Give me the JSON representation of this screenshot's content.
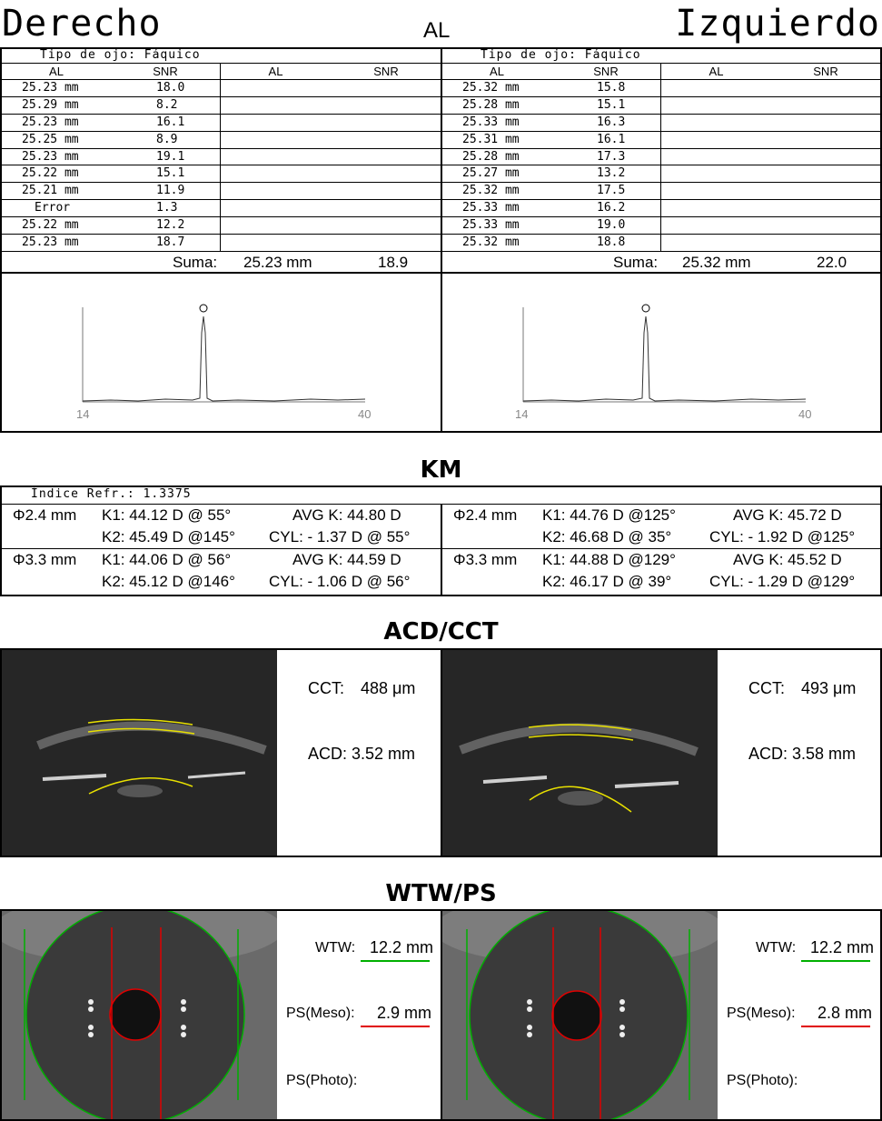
{
  "header": {
    "right_eye": "Derecho",
    "left_eye": "Izquierdo"
  },
  "al": {
    "title": "AL",
    "sum_label": "Suma:",
    "col_headers": [
      "AL",
      "SNR",
      "AL",
      "SNR"
    ],
    "right": {
      "eye_type": "Tipo de ojo: Fáquico",
      "rows": [
        [
          "25.23 mm",
          "18.0"
        ],
        [
          "25.29 mm",
          "8.2"
        ],
        [
          "25.23 mm",
          "16.1"
        ],
        [
          "25.25 mm",
          "8.9"
        ],
        [
          "25.23 mm",
          "19.1"
        ],
        [
          "25.22 mm",
          "15.1"
        ],
        [
          "25.21 mm",
          "11.9"
        ],
        [
          "Error",
          "1.3"
        ],
        [
          "25.22 mm",
          "12.2"
        ],
        [
          "25.23 mm",
          "18.7"
        ]
      ],
      "sum_al": "25.23 mm",
      "sum_snr": "18.9",
      "axis_min": "14",
      "axis_max": "40"
    },
    "left": {
      "eye_type": "Tipo de ojo: Fáquico",
      "rows": [
        [
          "25.32 mm",
          "15.8"
        ],
        [
          "25.28 mm",
          "15.1"
        ],
        [
          "25.33 mm",
          "16.3"
        ],
        [
          "25.31 mm",
          "16.1"
        ],
        [
          "25.28 mm",
          "17.3"
        ],
        [
          "25.27 mm",
          "13.2"
        ],
        [
          "25.32 mm",
          "17.5"
        ],
        [
          "25.33 mm",
          "16.2"
        ],
        [
          "25.33 mm",
          "19.0"
        ],
        [
          "25.32 mm",
          "18.8"
        ]
      ],
      "sum_al": "25.32 mm",
      "sum_snr": "22.0",
      "axis_min": "14",
      "axis_max": "40"
    }
  },
  "km": {
    "title": "KM",
    "refr_index": "Índice Refr.: 1.3375",
    "right": [
      {
        "zone": "Φ2.4 mm",
        "k1": "K1: 44.12 D @ 55°",
        "k2": "K2: 45.49 D @145°",
        "avg": "AVG K: 44.80 D",
        "cyl": "CYL: - 1.37 D @ 55°"
      },
      {
        "zone": "Φ3.3 mm",
        "k1": "K1: 44.06 D @ 56°",
        "k2": "K2: 45.12 D @146°",
        "avg": "AVG K: 44.59 D",
        "cyl": "CYL: - 1.06 D @ 56°"
      }
    ],
    "left": [
      {
        "zone": "Φ2.4 mm",
        "k1": "K1: 44.76 D @125°",
        "k2": "K2: 46.68 D @ 35°",
        "avg": "AVG K: 45.72 D",
        "cyl": "CYL: - 1.92 D @125°"
      },
      {
        "zone": "Φ3.3 mm",
        "k1": "K1: 44.88 D @129°",
        "k2": "K2: 46.17 D @ 39°",
        "avg": "AVG K: 45.52 D",
        "cyl": "CYL: - 1.29 D @129°"
      }
    ]
  },
  "acd": {
    "title": "ACD/CCT",
    "right": {
      "cct_label": "CCT:",
      "cct": "488 μm",
      "acd_label": "ACD:",
      "acd": "3.52 mm"
    },
    "left": {
      "cct_label": "CCT:",
      "cct": "493 μm",
      "acd_label": "ACD:",
      "acd": "3.58 mm"
    }
  },
  "wtw": {
    "title": "WTW/PS",
    "right": {
      "wtw_label": "WTW:",
      "wtw": "12.2 mm",
      "ps_meso_label": "PS(Meso):",
      "ps_meso": "2.9 mm",
      "ps_photo_label": "PS(Photo):"
    },
    "left": {
      "wtw_label": "WTW:",
      "wtw": "12.2 mm",
      "ps_meso_label": "PS(Meso):",
      "ps_meso": "2.8 mm",
      "ps_photo_label": "PS(Photo):"
    }
  },
  "colors": {
    "wtw_line": "#00b000",
    "ps_line": "#e00000",
    "arc": "#e8e000"
  }
}
